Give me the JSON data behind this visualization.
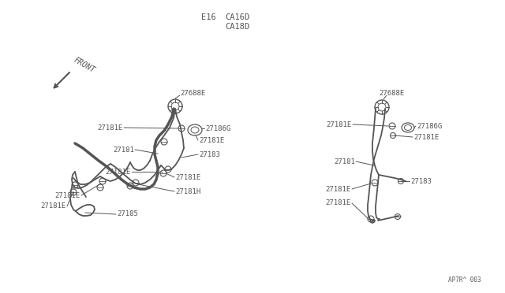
{
  "bg_color": "#ffffff",
  "line_color": "#555555",
  "text_color": "#555555",
  "title_e16": "E16",
  "title_ca16d": "CA16D",
  "title_ca18d": "CA18D",
  "footer": "AP7R^ 003",
  "font_size_labels": 6.5,
  "font_size_title": 7.5,
  "front_label": "FRONT"
}
